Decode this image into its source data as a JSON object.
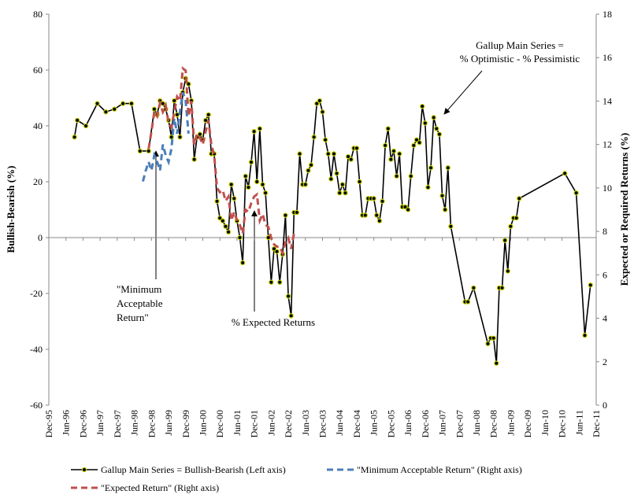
{
  "chart_data": {
    "type": "line",
    "ylabel": "Bullish-Bearish (%)",
    "y2label": "Expected or Required Returns (%)",
    "xlim": [
      "Dec-95",
      "Dec-11"
    ],
    "xticks": [
      "Dec-95",
      "Jun-96",
      "Dec-96",
      "Jun-97",
      "Dec-97",
      "Jun-98",
      "Dec-98",
      "Jun-99",
      "Dec-99",
      "Jun-00",
      "Dec-00",
      "Jun-01",
      "Dec-01",
      "Jun-02",
      "Dec-02",
      "Jun-03",
      "Dec-03",
      "Jun-04",
      "Dec-04",
      "Jun-05",
      "Dec-05",
      "Jun-06",
      "Dec-06",
      "Jun-07",
      "Dec-07",
      "Jun-08",
      "Dec-08",
      "Jun-09",
      "Dec-09",
      "Jun-10",
      "Dec-10",
      "Jun-11",
      "Dec-11"
    ],
    "ylim": [
      -60,
      80
    ],
    "yticks": [
      -60,
      -40,
      -20,
      0,
      20,
      40,
      60,
      80
    ],
    "y2lim": [
      0,
      18
    ],
    "y2ticks": [
      0,
      2,
      4,
      6,
      8,
      10,
      12,
      14,
      16,
      18
    ],
    "grid": false,
    "annotations": [
      {
        "lines": [
          "Gallup Main Series =",
          "% Optimistic - % Pessimistic"
        ]
      },
      {
        "lines": [
          "\"Minimum",
          "Acceptable",
          "Return\""
        ]
      },
      {
        "lines": [
          "% Expected Returns"
        ]
      }
    ],
    "series": [
      {
        "name": "Gallup Main Series  = Bullish-Bearish (Left axis)",
        "color": "#000000",
        "marker_color": "#c5d200",
        "markers": true,
        "dashed": false,
        "x": [
          "Sep-96",
          "Oct-96",
          "Jan-97",
          "May-97",
          "Aug-97",
          "Nov-97",
          "Feb-98",
          "May-98",
          "Aug-98",
          "Nov-98",
          "Jan-99",
          "Feb-99",
          "Mar-99",
          "Apr-99",
          "May-99",
          "Jun-99",
          "Jul-99",
          "Aug-99",
          "Sep-99",
          "Oct-99",
          "Nov-99",
          "Dec-99",
          "Jan-00",
          "Feb-00",
          "Mar-00",
          "Apr-00",
          "May-00",
          "Jun-00",
          "Jul-00",
          "Aug-00",
          "Sep-00",
          "Oct-00",
          "Nov-00",
          "Dec-00",
          "Jan-01",
          "Feb-01",
          "Mar-01",
          "Apr-01",
          "May-01",
          "Jun-01",
          "Jul-01",
          "Aug-01",
          "Sep-01",
          "Oct-01",
          "Nov-01",
          "Dec-01",
          "Jan-02",
          "Feb-02",
          "Mar-02",
          "Apr-02",
          "May-02",
          "Jun-02",
          "Jul-02",
          "Aug-02",
          "Sep-02",
          "Oct-02",
          "Nov-02",
          "Dec-02",
          "Jan-03",
          "Feb-03",
          "Mar-03",
          "Apr-03",
          "May-03",
          "Jun-03",
          "Jul-03",
          "Aug-03",
          "Sep-03",
          "Oct-03",
          "Nov-03",
          "Dec-03",
          "Jan-04",
          "Feb-04",
          "Mar-04",
          "Apr-04",
          "May-04",
          "Jun-04",
          "Jul-04",
          "Aug-04",
          "Sep-04",
          "Oct-04",
          "Nov-04",
          "Dec-04",
          "Jan-05",
          "Feb-05",
          "Mar-05",
          "Apr-05",
          "May-05",
          "Jun-05",
          "Jul-05",
          "Aug-05",
          "Sep-05",
          "Oct-05",
          "Nov-05",
          "Dec-05",
          "Jan-06",
          "Feb-06",
          "Mar-06",
          "Apr-06",
          "May-06",
          "Jun-06",
          "Jul-06",
          "Aug-06",
          "Sep-06",
          "Oct-06",
          "Nov-06",
          "Dec-06",
          "Jan-07",
          "Feb-07",
          "Mar-07",
          "Apr-07",
          "May-07",
          "Jun-07",
          "Jul-07",
          "Aug-07",
          "Sep-07",
          "Feb-08",
          "Mar-08",
          "May-08",
          "Oct-08",
          "Nov-08",
          "Dec-08",
          "Jan-09",
          "Feb-09",
          "Mar-09",
          "Apr-09",
          "May-09",
          "Jun-09",
          "Jul-09",
          "Aug-09",
          "Sep-09",
          "Jan-11",
          "May-11",
          "Aug-11",
          "Oct-11"
        ],
        "values": [
          36,
          42,
          40,
          48,
          45,
          46,
          48,
          48,
          31,
          31,
          46,
          44,
          49,
          48,
          46,
          42,
          36,
          49,
          44,
          36,
          52,
          57,
          55,
          49,
          28,
          36,
          37,
          35,
          42,
          44,
          30,
          30,
          13,
          7,
          6,
          4,
          2,
          19,
          14,
          6,
          0,
          -9,
          22,
          18,
          27,
          38,
          20,
          39,
          19,
          16,
          0,
          -16,
          -4,
          -5,
          -16,
          -6,
          8,
          -21,
          -28,
          9,
          9,
          30,
          19,
          19,
          24,
          26,
          36,
          48,
          49,
          45,
          35,
          30,
          21,
          30,
          23,
          16,
          19,
          16,
          29,
          28,
          32,
          32,
          20,
          8,
          8,
          14,
          14,
          14,
          8,
          6,
          13,
          33,
          39,
          28,
          31,
          22,
          30,
          11,
          11,
          10,
          22,
          33,
          35,
          34,
          47,
          41,
          18,
          25,
          43,
          39,
          37,
          15,
          10,
          25,
          4,
          -23,
          -23,
          -18,
          -38,
          -36,
          -36,
          -45,
          -18,
          -18,
          -1,
          -12,
          4,
          7,
          7,
          14,
          23,
          16,
          -35,
          -17
        ]
      },
      {
        "name": "\"Minimum Acceptable Return\" (Right axis)",
        "color": "#4a7ebb",
        "markers": false,
        "dashed": true,
        "axis": "y2",
        "x": [
          "Sep-98",
          "Oct-98",
          "Nov-98",
          "Dec-98",
          "Jan-99",
          "Feb-99",
          "Mar-99",
          "Apr-99",
          "May-99",
          "Jun-99",
          "Jul-99",
          "Aug-99",
          "Sep-99",
          "Oct-99",
          "Nov-99",
          "Dec-99",
          "Jan-00"
        ],
        "values": [
          10.3,
          10.8,
          11.2,
          10.8,
          11.5,
          11.2,
          10.8,
          12.0,
          11.5,
          11.2,
          11.8,
          13.2,
          12.5,
          13.5,
          14.4,
          14.0,
          12.5
        ]
      },
      {
        "name": "\"Expected Return\" (Right axis)",
        "color": "#c0504d",
        "markers": false,
        "dashed": true,
        "axis": "y2",
        "x": [
          "Nov-98",
          "Dec-98",
          "Jan-99",
          "Feb-99",
          "Mar-99",
          "Apr-99",
          "May-99",
          "Jun-99",
          "Jul-99",
          "Aug-99",
          "Sep-99",
          "Oct-99",
          "Nov-99",
          "Dec-99",
          "Jan-00",
          "Feb-00",
          "Mar-00",
          "Apr-00",
          "May-00",
          "Jun-00",
          "Jul-00",
          "Aug-00",
          "Sep-00",
          "Oct-00",
          "Nov-00",
          "Dec-00",
          "Jan-01",
          "Feb-01",
          "Mar-01",
          "Apr-01",
          "May-01",
          "Jun-01",
          "Jul-01",
          "Aug-01",
          "Sep-01",
          "Oct-01",
          "Nov-01",
          "Dec-01",
          "Jan-02",
          "Feb-02",
          "Mar-02",
          "Apr-02",
          "May-02",
          "Jun-02",
          "Jul-02",
          "Aug-02",
          "Sep-02",
          "Oct-02",
          "Nov-02",
          "Dec-02",
          "Jan-03",
          "Feb-03",
          "Mar-03"
        ],
        "values": [
          11.8,
          12.6,
          13.5,
          13.3,
          13.9,
          13.5,
          13.8,
          13.0,
          12.8,
          13.5,
          14.2,
          14.0,
          15.5,
          15.4,
          13.3,
          14.0,
          12.0,
          12.5,
          12.3,
          12.0,
          12.6,
          13.1,
          12.0,
          11.5,
          10.0,
          9.8,
          9.9,
          9.4,
          9.6,
          8.5,
          8.9,
          8.5,
          8.3,
          7.9,
          9.0,
          8.9,
          9.3,
          9.6,
          9.7,
          8.5,
          8.8,
          8.3,
          8.2,
          7.7,
          7.4,
          7.3,
          7.3,
          7.0,
          7.5,
          7.7,
          7.2,
          7.9,
          8.0
        ]
      }
    ]
  }
}
